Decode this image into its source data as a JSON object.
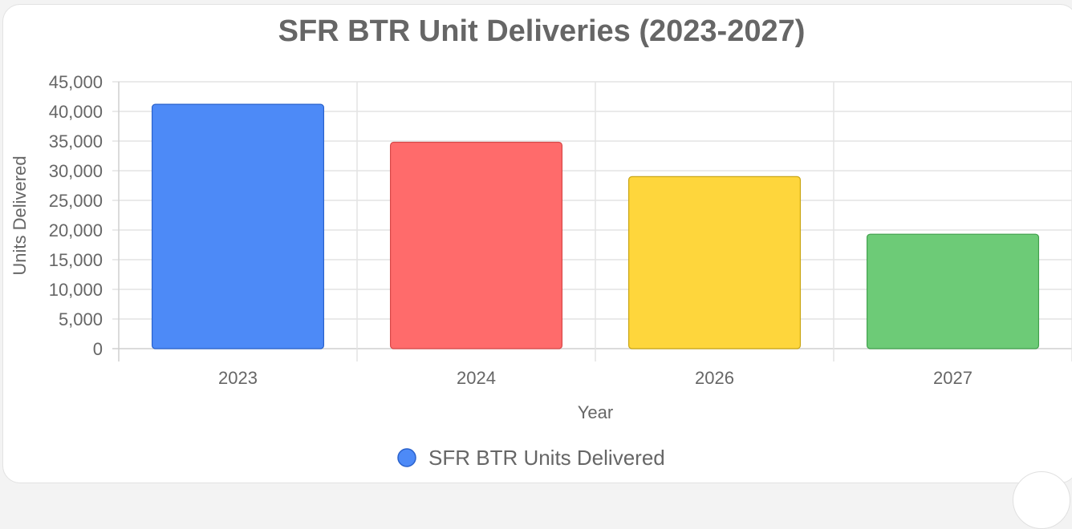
{
  "chart_data": {
    "type": "bar",
    "title": "SFR BTR Unit Deliveries (2023-2027)",
    "xlabel": "Year",
    "ylabel": "Units Delivered",
    "categories": [
      "2023",
      "2024",
      "2026",
      "2027"
    ],
    "series": [
      {
        "name": "SFR BTR Units Delivered",
        "values": [
          41200,
          34800,
          29000,
          19300
        ]
      }
    ],
    "bar_colors": [
      "#4d8af7",
      "#ff6b6b",
      "#fed63c",
      "#6dcb77"
    ],
    "bar_border_colors": [
      "#2a62cc",
      "#d84848",
      "#c9a514",
      "#43a04e"
    ],
    "legend_color": "#4d8af7",
    "ylim": [
      0,
      45000
    ],
    "yticks": [
      "0",
      "5,000",
      "10,000",
      "15,000",
      "20,000",
      "25,000",
      "30,000",
      "35,000",
      "40,000",
      "45,000"
    ],
    "grid": true,
    "legend_position": "bottom"
  }
}
